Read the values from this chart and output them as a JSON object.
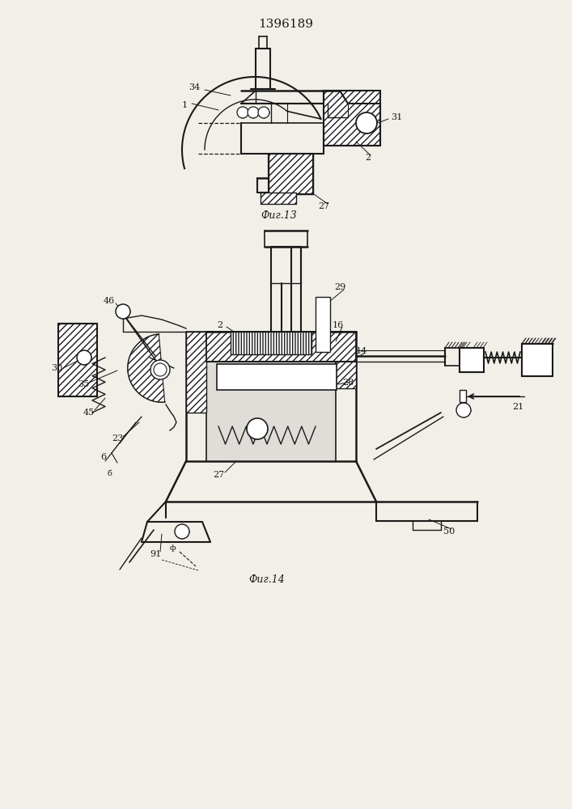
{
  "title": "1396189",
  "fig13_caption": "Фиг.13",
  "fig14_caption": "Фиг.14",
  "bg_color": "#f2efe8",
  "line_color": "#1a1a1a",
  "fig_width": 7.07,
  "fig_height": 10.0,
  "dpi": 100
}
